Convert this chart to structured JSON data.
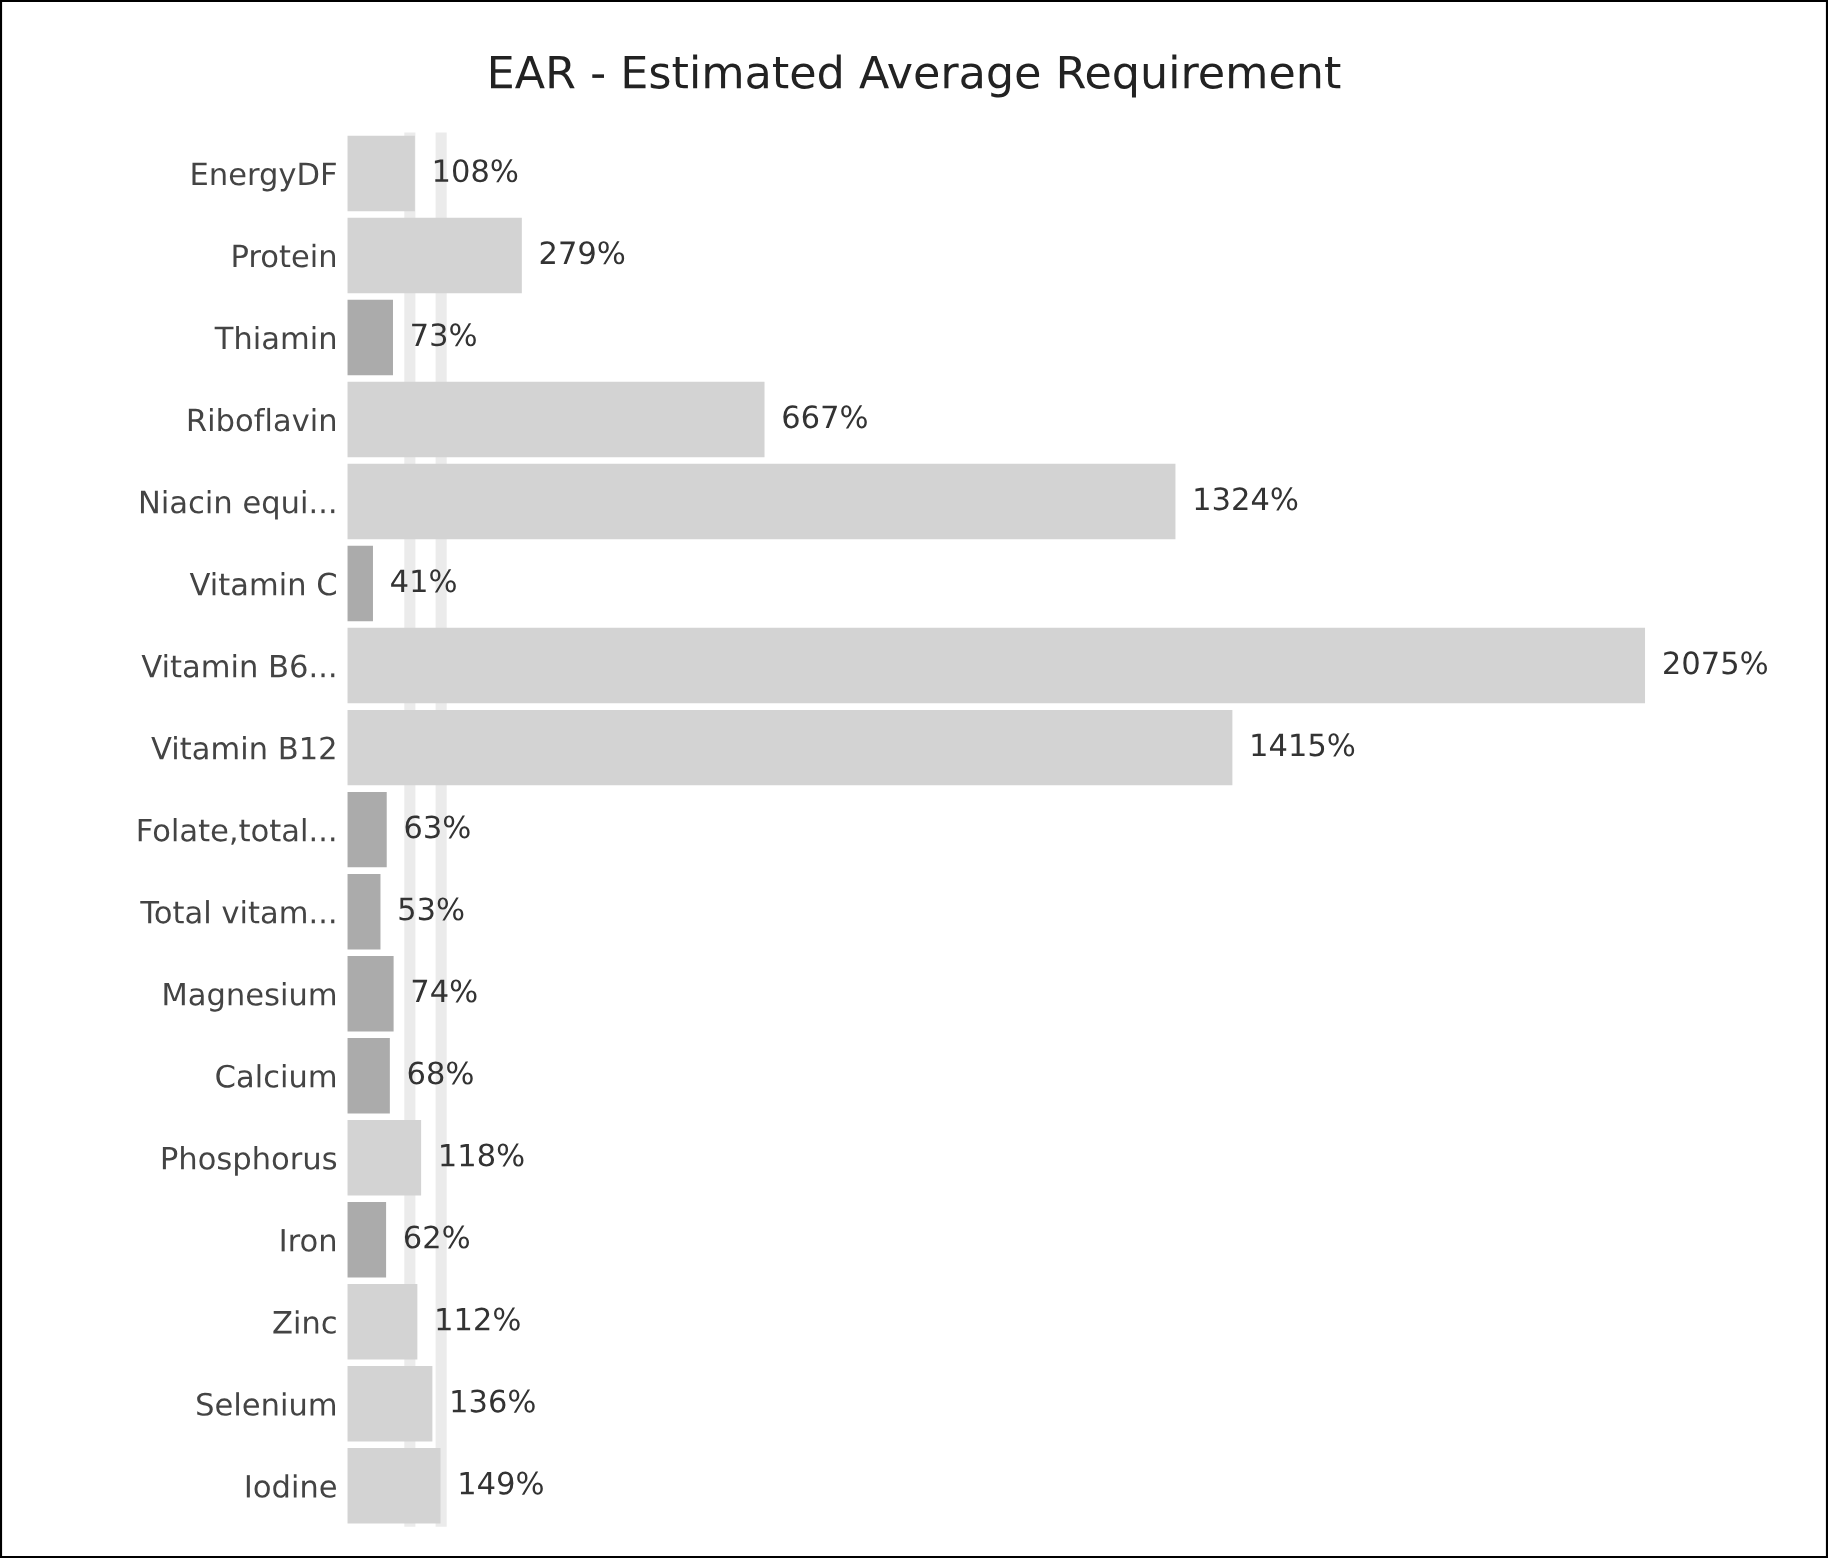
{
  "chart_data": {
    "type": "bar",
    "orientation": "horizontal",
    "title": "EAR - Estimated Average Requirement",
    "categories": [
      "EnergyDF",
      "Protein",
      "Thiamin",
      "Riboflavin",
      "Niacin equi...",
      "Vitamin C",
      "Vitamin B6...",
      "Vitamin B12",
      "Folate,total...",
      "Total vitam...",
      "Magnesium",
      "Calcium",
      "Phosphorus",
      "Iron",
      "Zinc",
      "Selenium",
      "Iodine"
    ],
    "values": [
      108,
      279,
      73,
      667,
      1324,
      41,
      2075,
      1415,
      63,
      53,
      74,
      68,
      118,
      62,
      112,
      136,
      149
    ],
    "colors": [
      "#d3d3d3",
      "#d3d3d3",
      "#ababab",
      "#d3d3d3",
      "#d3d3d3",
      "#ababab",
      "#d3d3d3",
      "#d3d3d3",
      "#ababab",
      "#ababab",
      "#ababab",
      "#ababab",
      "#d3d3d3",
      "#ababab",
      "#d3d3d3",
      "#d3d3d3",
      "#d3d3d3"
    ],
    "value_labels": [
      "108%",
      "279%",
      "73%",
      "667%",
      "1324%",
      "41%",
      "2075%",
      "1415%",
      "63%",
      "53%",
      "74%",
      "68%",
      "118%",
      "62%",
      "112%",
      "136%",
      "149%"
    ],
    "ref_lines": [
      {
        "axis": "x",
        "value": 100,
        "color": "#ebebeb"
      },
      {
        "axis": "x",
        "value": 150,
        "color": "#ebebeb"
      }
    ],
    "tick_labels": "y",
    "grid": false,
    "legend": false
  }
}
